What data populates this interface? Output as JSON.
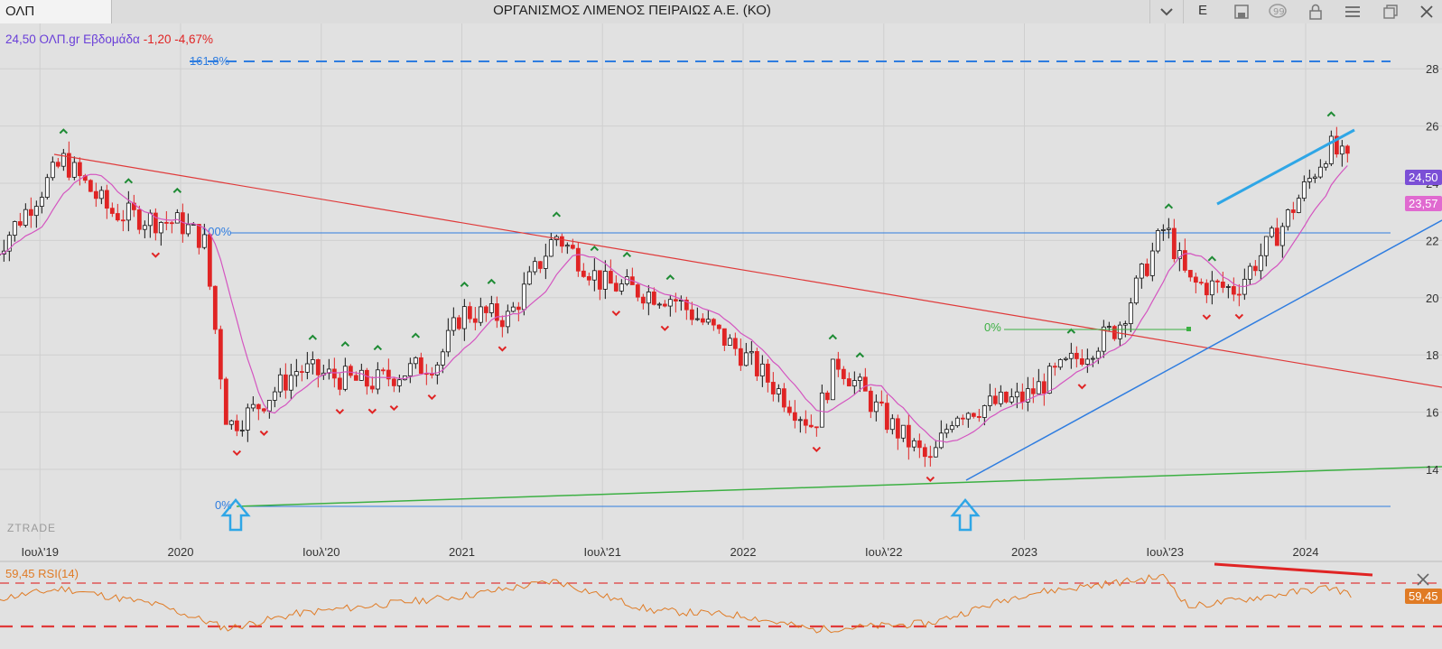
{
  "header": {
    "symbol": "ΟΛΠ",
    "title": "ΟΡΓΑΝΙΣΜΟΣ ΛΙΜΕΝΟΣ ΠΕΙΡΑΙΩΣ Α.Ε. (ΚΟ)",
    "period": "Ε",
    "icons": [
      "chevron-down-icon",
      "save-icon",
      "comment-icon",
      "lock-icon",
      "menu-icon",
      "window-icon",
      "close-icon"
    ]
  },
  "info": {
    "price_label": "24,50 ΟΛΠ.gr Εβδομάδα",
    "change_label": "-1,20 -4,67%"
  },
  "watermark": "ZTRADE",
  "colors": {
    "up_candle": "#ffffff",
    "down_candle": "#e02424",
    "ma_line": "#d455c0",
    "fib_line": "#2f7de0",
    "trend_red": "#e03a3a",
    "trend_green": "#3cb043",
    "rsi_line": "#e07b25",
    "price_badge": "#7b4fd6",
    "ma_badge": "#e06ad0"
  },
  "chart_data": [
    {
      "type": "candlestick",
      "title": "ΟΡΓΑΝΙΣΜΟΣ ΛΙΜΕΝΟΣ ΠΕΙΡΑΙΩΣ Α.Ε. (ΚΟ)",
      "interval": "weekly",
      "x_tick_labels": [
        "Ιουλ'19",
        "2020",
        "Ιουλ'20",
        "2021",
        "Ιουλ'21",
        "2022",
        "Ιουλ'22",
        "2023",
        "Ιουλ'23",
        "2024"
      ],
      "y_tick_labels": [
        "14",
        "16",
        "18",
        "20",
        "22",
        "24",
        "26",
        "28"
      ],
      "ylim": [
        12.8,
        29.0
      ],
      "grid": true,
      "last_price": 24.5,
      "last_price_label": "24,50",
      "moving_average_label": "23,57",
      "moving_average_last": 23.57,
      "approx_close_path": [
        {
          "date": "2019-05",
          "close": 21.5
        },
        {
          "date": "2019-08",
          "close": 24.8
        },
        {
          "date": "2019-10",
          "close": 23.0
        },
        {
          "date": "2019-12",
          "close": 22.7
        },
        {
          "date": "2020-01",
          "close": 22.6
        },
        {
          "date": "2020-02",
          "close": 22.0
        },
        {
          "date": "2020-03",
          "close": 15.5
        },
        {
          "date": "2020-04",
          "close": 16.0
        },
        {
          "date": "2020-06",
          "close": 17.5
        },
        {
          "date": "2020-09",
          "close": 17.0
        },
        {
          "date": "2020-12",
          "close": 17.8
        },
        {
          "date": "2021-01",
          "close": 19.5
        },
        {
          "date": "2021-03",
          "close": 19.3
        },
        {
          "date": "2021-05",
          "close": 22.2
        },
        {
          "date": "2021-07",
          "close": 20.5
        },
        {
          "date": "2021-10",
          "close": 20.0
        },
        {
          "date": "2022-01",
          "close": 18.0
        },
        {
          "date": "2022-04",
          "close": 15.5
        },
        {
          "date": "2022-05",
          "close": 17.8
        },
        {
          "date": "2022-07",
          "close": 15.8
        },
        {
          "date": "2022-09",
          "close": 14.2
        },
        {
          "date": "2022-10",
          "close": 16.0
        },
        {
          "date": "2023-01",
          "close": 16.5
        },
        {
          "date": "2023-05",
          "close": 19.0
        },
        {
          "date": "2023-07",
          "close": 22.5
        },
        {
          "date": "2023-08",
          "close": 20.5
        },
        {
          "date": "2023-10",
          "close": 20.3
        },
        {
          "date": "2023-12",
          "close": 22.5
        },
        {
          "date": "2024-02",
          "close": 25.3
        },
        {
          "date": "2024-03",
          "close": 24.5
        }
      ],
      "fibonacci": [
        {
          "label": "161.8%",
          "price": 28.2
        },
        {
          "label": "100%",
          "price": 22.3
        },
        {
          "label": "0%",
          "price": 12.9
        }
      ],
      "annotations": [
        {
          "type": "trendline",
          "color": "red",
          "from": {
            "date": "2019-07",
            "price": 25.3
          },
          "to": {
            "date": "2024-06",
            "price": 17.2
          }
        },
        {
          "type": "trendline",
          "color": "green",
          "from": {
            "date": "2020-03",
            "price": 12.9
          },
          "to": {
            "date": "2024-06",
            "price": 14.3
          }
        },
        {
          "type": "trendline",
          "color": "blue",
          "from": {
            "date": "2022-09",
            "price": 13.7
          },
          "to": {
            "date": "2024-06",
            "price": 22.5
          }
        },
        {
          "type": "trendline",
          "color": "blue",
          "from": {
            "date": "2023-08",
            "price": 23.1
          },
          "to": {
            "date": "2024-02",
            "price": 26.0
          }
        },
        {
          "type": "level",
          "label": "0%",
          "color": "green",
          "price": 19.0
        },
        {
          "type": "arrow-up",
          "date": "2020-03"
        },
        {
          "type": "arrow-up",
          "date": "2022-09"
        }
      ]
    },
    {
      "type": "line",
      "title": "RSI(14)",
      "label": "59,45 RSI(14)",
      "last_value": 59.45,
      "last_value_label": "59,45",
      "overbought": 70,
      "oversold": 30,
      "ylim": [
        25,
        80
      ],
      "approx_values": [
        {
          "date": "2019-05",
          "value": 55
        },
        {
          "date": "2019-08",
          "value": 65
        },
        {
          "date": "2019-12",
          "value": 50
        },
        {
          "date": "2020-03",
          "value": 28
        },
        {
          "date": "2020-06",
          "value": 42
        },
        {
          "date": "2021-01",
          "value": 58
        },
        {
          "date": "2021-05",
          "value": 72
        },
        {
          "date": "2021-09",
          "value": 45
        },
        {
          "date": "2022-01",
          "value": 40
        },
        {
          "date": "2022-04",
          "value": 27
        },
        {
          "date": "2022-09",
          "value": 33
        },
        {
          "date": "2023-01",
          "value": 60
        },
        {
          "date": "2023-07",
          "value": 76
        },
        {
          "date": "2023-08",
          "value": 48
        },
        {
          "date": "2024-02",
          "value": 66
        },
        {
          "date": "2024-03",
          "value": 59.45
        }
      ]
    }
  ]
}
